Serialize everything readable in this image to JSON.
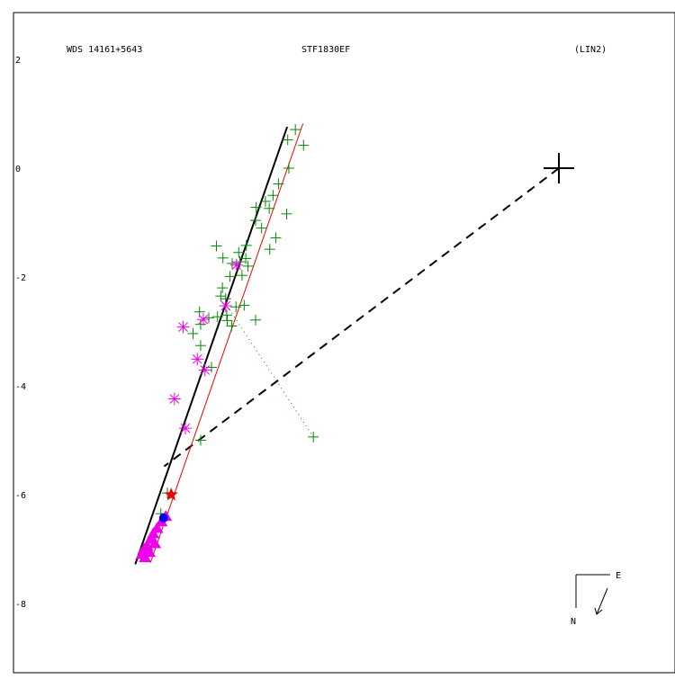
{
  "header": {
    "wds": "WDS 14161+5643",
    "disc": "STF1830EF",
    "method": "(LIN2)"
  },
  "compass": {
    "east": "E",
    "north": "N"
  },
  "colors": {
    "green": "#008800",
    "magenta": "#ee00ee",
    "red": "#ee0000",
    "blue": "#0000ee",
    "black": "#000000"
  },
  "chart_data": {
    "type": "scatter",
    "ylim": [
      -9.2,
      2.8
    ],
    "yticks": [
      "2",
      "0",
      "-2",
      "-4",
      "-6",
      "-8"
    ],
    "primary": {
      "x": 0,
      "y": 0
    },
    "green_obs": [
      [
        -4.84,
        0.71
      ],
      [
        -4.69,
        0.42
      ],
      [
        -4.98,
        0.52
      ],
      [
        -4.96,
        0.0
      ],
      [
        -5.15,
        -0.29
      ],
      [
        -5.25,
        -0.5
      ],
      [
        -5.39,
        -0.61
      ],
      [
        -5.32,
        -0.74
      ],
      [
        -5.0,
        -0.84
      ],
      [
        -5.56,
        -0.72
      ],
      [
        -5.57,
        -0.96
      ],
      [
        -5.46,
        -1.1
      ],
      [
        -5.2,
        -1.28
      ],
      [
        -5.31,
        -1.49
      ],
      [
        -5.74,
        -1.42
      ],
      [
        -5.88,
        -1.55
      ],
      [
        -5.75,
        -1.66
      ],
      [
        -5.86,
        -1.72
      ],
      [
        -5.71,
        -1.8
      ],
      [
        -5.82,
        -1.97
      ],
      [
        -6.29,
        -1.43
      ],
      [
        -6.17,
        -1.65
      ],
      [
        -6.0,
        -1.75
      ],
      [
        -6.04,
        -1.99
      ],
      [
        -6.18,
        -2.2
      ],
      [
        -6.21,
        -2.35
      ],
      [
        -6.12,
        -2.4
      ],
      [
        -5.78,
        -2.52
      ],
      [
        -5.93,
        -2.55
      ],
      [
        -6.1,
        -2.7
      ],
      [
        -6.27,
        -2.73
      ],
      [
        -6.43,
        -2.75
      ],
      [
        -6.6,
        -2.64
      ],
      [
        -6.58,
        -2.87
      ],
      [
        -6.09,
        -2.8
      ],
      [
        -5.57,
        -2.79
      ],
      [
        -6.01,
        -2.9
      ],
      [
        -6.72,
        -3.04
      ],
      [
        -6.58,
        -3.26
      ],
      [
        -6.38,
        -3.66
      ],
      [
        -6.58,
        -5.0
      ],
      [
        -7.19,
        -5.97
      ],
      [
        -7.31,
        -6.35
      ],
      [
        -4.51,
        -4.94
      ]
    ],
    "magenta_obs": [
      [
        -5.92,
        -1.78
      ],
      [
        -6.12,
        -2.53
      ],
      [
        -6.53,
        -2.78
      ],
      [
        -6.9,
        -2.92
      ],
      [
        -6.64,
        -3.51
      ],
      [
        -6.5,
        -3.71
      ],
      [
        -7.06,
        -4.24
      ],
      [
        -6.86,
        -4.78
      ]
    ],
    "magenta_tri": [
      [
        -7.22,
        -6.4
      ],
      [
        -7.3,
        -6.5
      ],
      [
        -7.38,
        -6.62
      ],
      [
        -7.45,
        -6.72
      ],
      [
        -7.5,
        -6.82
      ],
      [
        -7.42,
        -6.9
      ],
      [
        -7.56,
        -6.95
      ],
      [
        -7.62,
        -7.0
      ],
      [
        -7.52,
        -7.06
      ],
      [
        -7.66,
        -7.1
      ],
      [
        -7.6,
        -7.16
      ]
    ],
    "blue_obs": [
      [
        -7.26,
        -6.43
      ]
    ],
    "red_star": {
      "x": -7.12,
      "y": -6.0
    },
    "black_line": [
      [
        -4.99,
        0.76
      ],
      [
        -7.78,
        -7.28
      ]
    ],
    "red_line": [
      [
        -4.7,
        0.82
      ],
      [
        -7.5,
        -7.25
      ]
    ],
    "dashed_line": [
      [
        0,
        0
      ],
      [
        -7.25,
        -5.48
      ]
    ],
    "dotted_line": [
      [
        -6.1,
        -2.52
      ],
      [
        -4.51,
        -4.94
      ]
    ]
  }
}
